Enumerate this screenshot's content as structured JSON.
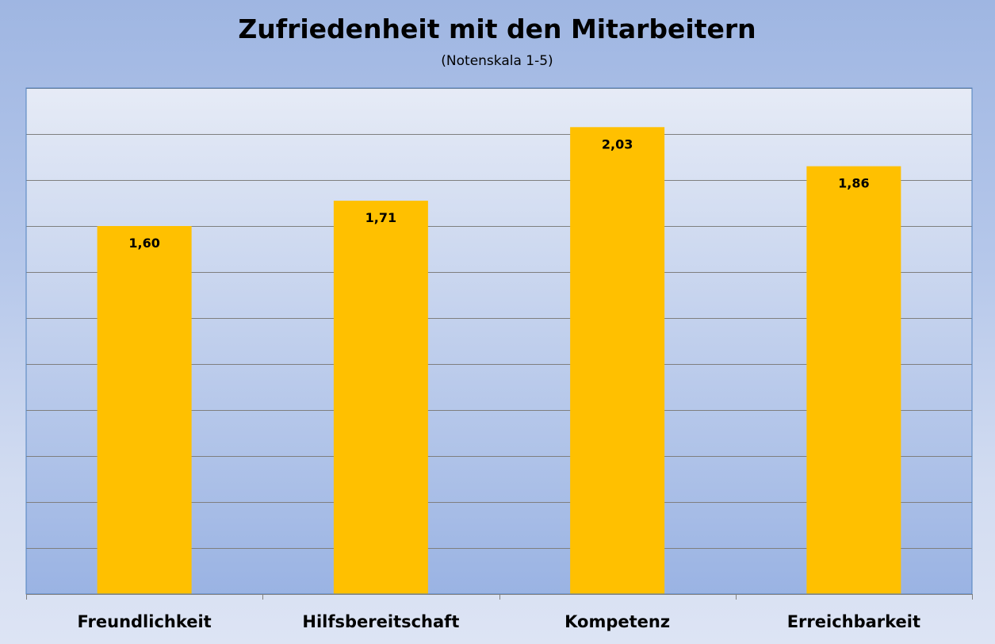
{
  "chart_data": {
    "type": "bar",
    "title": "Zufriedenheit mit den Mitarbeitern",
    "subtitle": "(Notenskala 1-5)",
    "categories": [
      "Freundlichkeit",
      "Hilfsbereitschaft",
      "Kompetenz",
      "Erreichbarkeit"
    ],
    "values": [
      1.6,
      1.71,
      2.03,
      1.86
    ],
    "data_labels": [
      "1,60",
      "1,71",
      "2,03",
      "1,86"
    ],
    "ylim": [
      0,
      2.2
    ],
    "gridline_step": 0.2,
    "grid": true,
    "legend": "none",
    "xlabel": "",
    "ylabel": ""
  },
  "colors": {
    "bar": "#FFC000",
    "plot_gradient_top": "#e6ebf6",
    "plot_gradient_bottom": "#9ab3e3",
    "gridline": "#7f7f7f",
    "plot_border": "#4f81bd"
  }
}
